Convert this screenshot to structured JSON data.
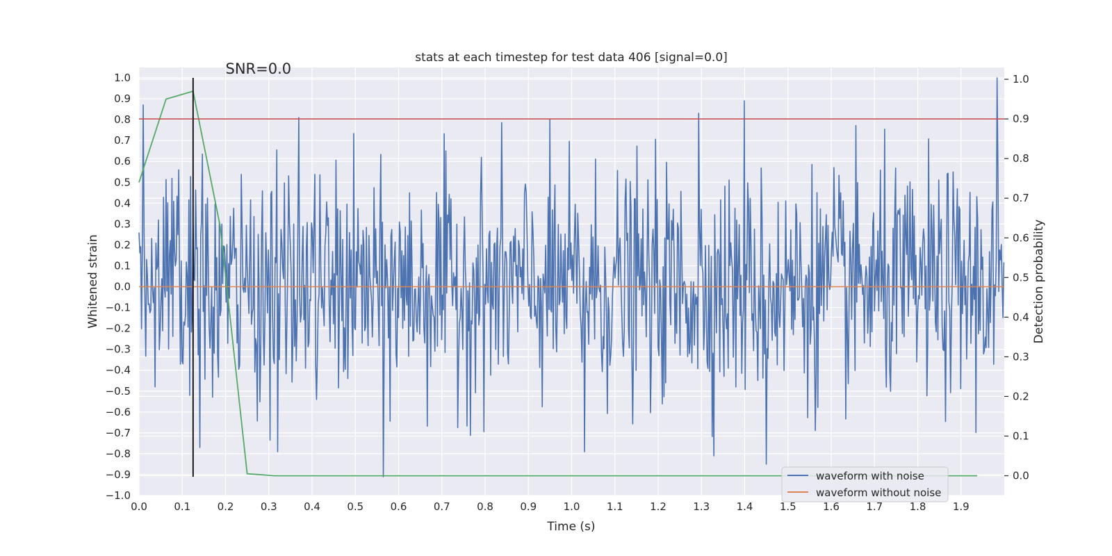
{
  "chart_data": {
    "type": "line",
    "title": "stats at each timestep for test data 406 [signal=0.0]",
    "xlabel": "Time (s)",
    "ylabel": "Whitened strain",
    "y2label": "Detection probability",
    "xlim": [
      0.0,
      2.0
    ],
    "ylim": [
      -1.0,
      1.05
    ],
    "y2lim": [
      -0.05,
      1.03
    ],
    "x_ticks": [
      0.0,
      0.1,
      0.2,
      0.3,
      0.4,
      0.5,
      0.6,
      0.7,
      0.8,
      0.9,
      1.0,
      1.1,
      1.2,
      1.3,
      1.4,
      1.5,
      1.6,
      1.7,
      1.8,
      1.9
    ],
    "x_tick_labels": [
      "0.0",
      "0.1",
      "0.2",
      "0.3",
      "0.4",
      "0.5",
      "0.6",
      "0.7",
      "0.8",
      "0.9",
      "1.0",
      "1.1",
      "1.2",
      "1.3",
      "1.4",
      "1.5",
      "1.6",
      "1.7",
      "1.8",
      "1.9"
    ],
    "y_ticks": [
      1.0,
      0.9,
      0.8,
      0.7,
      0.6,
      0.5,
      0.4,
      0.3,
      0.2,
      0.1,
      0.0,
      -0.1,
      -0.2,
      -0.3,
      -0.4,
      -0.5,
      -0.6,
      -0.7,
      -0.8,
      -0.9,
      -1.0
    ],
    "y_tick_labels": [
      "1.0",
      "0.9",
      "0.8",
      "0.7",
      "0.6",
      "0.5",
      "0.4",
      "0.3",
      "0.2",
      "0.1",
      "0.0",
      "−0.1",
      "−0.2",
      "−0.3",
      "−0.4",
      "−0.5",
      "−0.6",
      "−0.7",
      "−0.8",
      "−0.9",
      "−1.0"
    ],
    "y2_ticks": [
      1.0,
      0.9,
      0.8,
      0.7,
      0.6,
      0.5,
      0.4,
      0.3,
      0.2,
      0.1,
      0.0
    ],
    "y2_tick_labels": [
      "1.0",
      "0.9",
      "0.8",
      "0.7",
      "0.6",
      "0.5",
      "0.4",
      "0.3",
      "0.2",
      "0.1",
      "0.0"
    ],
    "annotation": "SNR=0.0",
    "annotation_anchor": {
      "x": 0.2,
      "y": 1.02
    },
    "series": [
      {
        "name": "waveform with noise",
        "color": "#4c72b0",
        "axis": "left",
        "kind": "noise",
        "sample_count": 1024,
        "range": [
          -0.91,
          1.0
        ],
        "notable_peaks": [
          {
            "x": 0.01,
            "y": 0.87
          },
          {
            "x": 0.37,
            "y": 0.81
          },
          {
            "x": 1.295,
            "y": 0.83
          },
          {
            "x": 1.4,
            "y": 0.89
          },
          {
            "x": 1.985,
            "y": 1.0
          },
          {
            "x": 0.565,
            "y": -0.91
          },
          {
            "x": 1.45,
            "y": -0.85
          },
          {
            "x": 0.14,
            "y": -0.77
          },
          {
            "x": 0.32,
            "y": -0.79
          },
          {
            "x": 1.03,
            "y": -0.79
          }
        ]
      },
      {
        "name": "waveform without noise",
        "color": "#dd8452",
        "axis": "left",
        "x": [
          0.0,
          2.0
        ],
        "y": [
          0.0,
          0.0
        ]
      },
      {
        "name": "detection probability",
        "color": "#55a868",
        "axis": "right",
        "x": [
          0.0,
          0.0625,
          0.125,
          0.1875,
          0.25,
          0.3125,
          0.375,
          0.4375,
          0.5,
          0.5625,
          0.625,
          0.6875,
          0.75,
          0.8125,
          0.875,
          0.9375,
          1.0,
          1.0625,
          1.125,
          1.1875,
          1.25,
          1.3125,
          1.375,
          1.4375,
          1.5,
          1.5625,
          1.625,
          1.6875,
          1.75,
          1.8125,
          1.875,
          1.9375
        ],
        "y": [
          0.74,
          0.95,
          0.97,
          0.63,
          0.005,
          0.0,
          0.0,
          0.0,
          0.0,
          0.0,
          0.0,
          0.0,
          0.0,
          0.0,
          0.0,
          0.0,
          0.0,
          0.0,
          0.0,
          0.0,
          0.0,
          0.0,
          0.0,
          0.0,
          0.0,
          0.0,
          0.0,
          0.0,
          0.0,
          0.0,
          0.0,
          0.0
        ]
      }
    ],
    "threshold_line": {
      "color": "#c44e52",
      "axis": "right",
      "y": 0.9
    },
    "event_marker": {
      "color": "#000000",
      "x": 0.125,
      "y_range": [
        -0.91,
        1.0
      ]
    },
    "legend": {
      "placement": "lower-right",
      "entries": [
        {
          "label": "waveform with noise",
          "color": "#4c72b0"
        },
        {
          "label": "waveform without noise",
          "color": "#dd8452"
        }
      ]
    },
    "style": {
      "background": "#eaeaf2",
      "grid": true,
      "grid_color": "#ffffff"
    }
  }
}
